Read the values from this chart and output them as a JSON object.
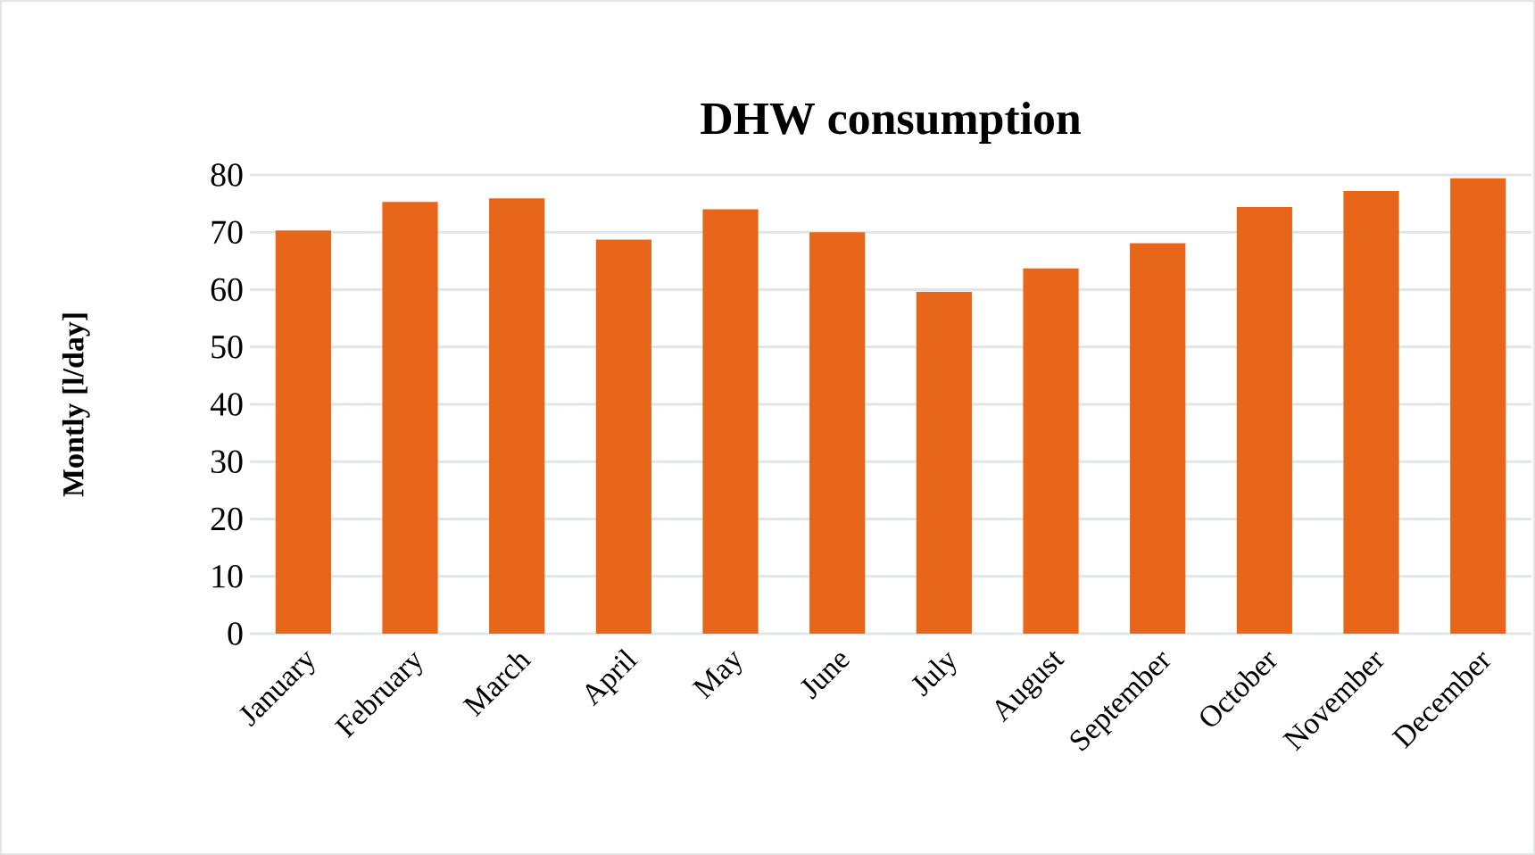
{
  "chart_data": {
    "type": "bar",
    "title": "DHW consumption",
    "ylabel": "Montly [l/day]",
    "categories": [
      "January",
      "February",
      "March",
      "April",
      "May",
      "June",
      "July",
      "August",
      "September",
      "October",
      "November",
      "December"
    ],
    "values": [
      70.3,
      75.3,
      75.9,
      68.7,
      74.0,
      70.0,
      59.6,
      63.7,
      68.1,
      74.4,
      77.2,
      79.4
    ],
    "color": "#e8661a",
    "ylim": [
      0,
      80
    ],
    "yticks": [
      0,
      10,
      20,
      30,
      40,
      50,
      60,
      70,
      80
    ],
    "grid": "y"
  }
}
